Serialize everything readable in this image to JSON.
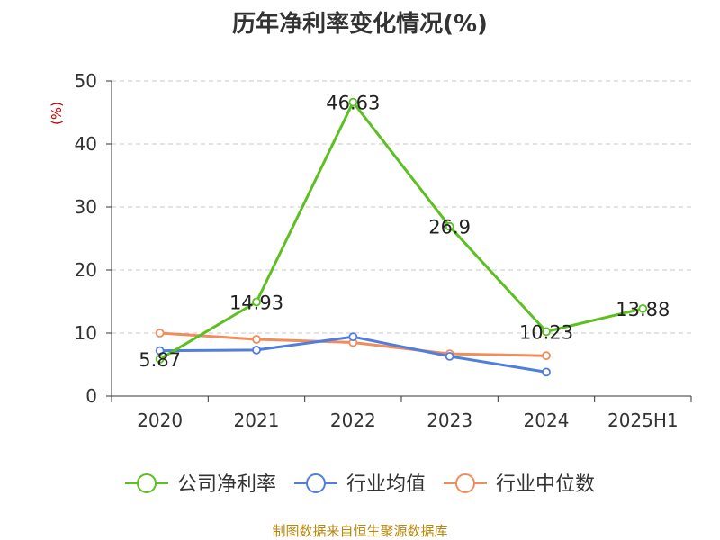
{
  "chart_data": {
    "type": "line",
    "title": "历年净利率变化情况(%)",
    "ylabel": "(%)",
    "ylim": [
      0,
      50
    ],
    "yticks": [
      0,
      10,
      20,
      30,
      40,
      50
    ],
    "categories": [
      "2020",
      "2021",
      "2022",
      "2023",
      "2024",
      "2025H1"
    ],
    "grid": true,
    "legend_position": "bottom",
    "series": [
      {
        "name": "公司净利率",
        "color": "#5cc020",
        "values": [
          5.87,
          14.93,
          46.63,
          26.9,
          10.23,
          13.88
        ],
        "labels": [
          "5.87",
          "14.93",
          "46.63",
          "26.9",
          "10.23",
          "13.88"
        ]
      },
      {
        "name": "行业均值",
        "color": "#4f7ee0",
        "values": [
          7.2,
          7.3,
          9.4,
          6.3,
          3.8,
          null
        ]
      },
      {
        "name": "行业中位数",
        "color": "#f28c5a",
        "values": [
          10.0,
          9.0,
          8.5,
          6.7,
          6.4,
          null
        ]
      }
    ]
  },
  "source": "制图数据来自恒生聚源数据库"
}
